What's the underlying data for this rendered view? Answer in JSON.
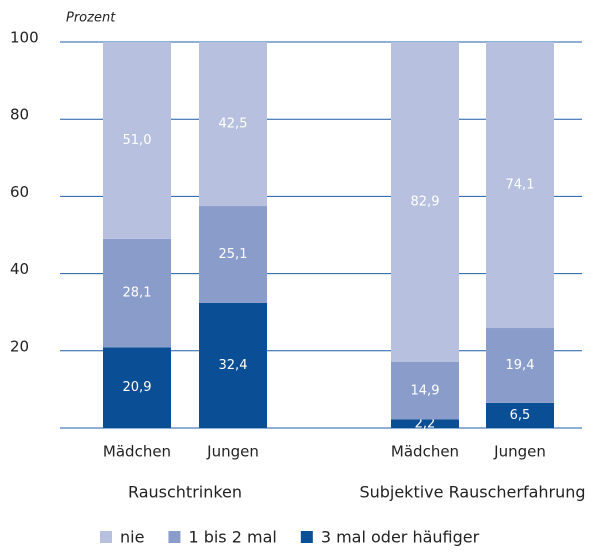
{
  "chart_data": {
    "type": "stacked-bar",
    "y_label": "Prozent",
    "categories": [
      "Mädchen",
      "Jungen",
      "Mädchen",
      "Jungen"
    ],
    "groups": [
      "Rauschtrinken",
      "Subjektive Rauscherfahrung"
    ],
    "series": [
      {
        "name": "nie",
        "color": "#b7c1df",
        "values": [
          51.0,
          42.5,
          82.9,
          74.1
        ],
        "value_labels": [
          "51,0",
          "42,5",
          "82,9",
          "74,1"
        ]
      },
      {
        "name": "1 bis 2 mal",
        "color": "#8a9cca",
        "values": [
          28.1,
          25.1,
          14.9,
          19.4
        ],
        "value_labels": [
          "28,1",
          "25,1",
          "14,9",
          "19,4"
        ]
      },
      {
        "name": "3 mal oder häufiger",
        "color": "#0a4e96",
        "values": [
          20.9,
          32.4,
          2.2,
          6.5
        ],
        "value_labels": [
          "20,9",
          "32,4",
          "2,2",
          "6,5"
        ]
      }
    ],
    "ylim": [
      0,
      100
    ],
    "yticks": [
      20,
      40,
      60,
      80,
      100
    ],
    "grid": true
  }
}
